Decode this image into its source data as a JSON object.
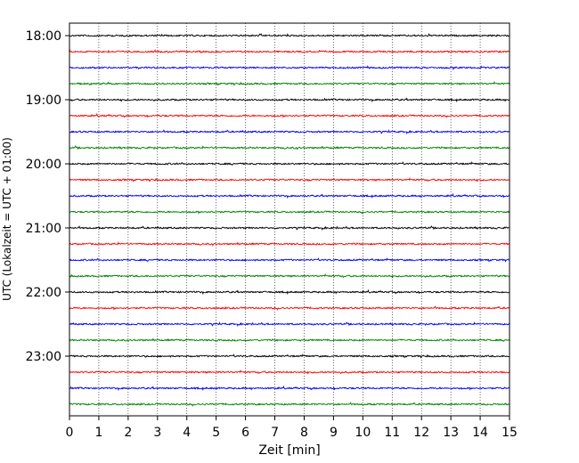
{
  "chart_data": {
    "type": "line",
    "title": "",
    "xlabel": "Zeit  [min]",
    "ylabel": "UTC (Lokalzeit = UTC + 01:00)",
    "xlim": [
      0,
      15
    ],
    "xticks": [
      "0",
      "1",
      "2",
      "3",
      "4",
      "5",
      "6",
      "7",
      "8",
      "9",
      "10",
      "11",
      "12",
      "13",
      "14",
      "15"
    ],
    "yticks": [
      "18:00",
      "19:00",
      "20:00",
      "21:00",
      "22:00",
      "23:00"
    ],
    "grid": "vertical-dotted",
    "trace_interval_min": 15,
    "trace_start": "18:00",
    "trace_count": 24,
    "trace_colors": [
      "#000000",
      "#ff0000",
      "#0000ff",
      "#008000"
    ]
  }
}
